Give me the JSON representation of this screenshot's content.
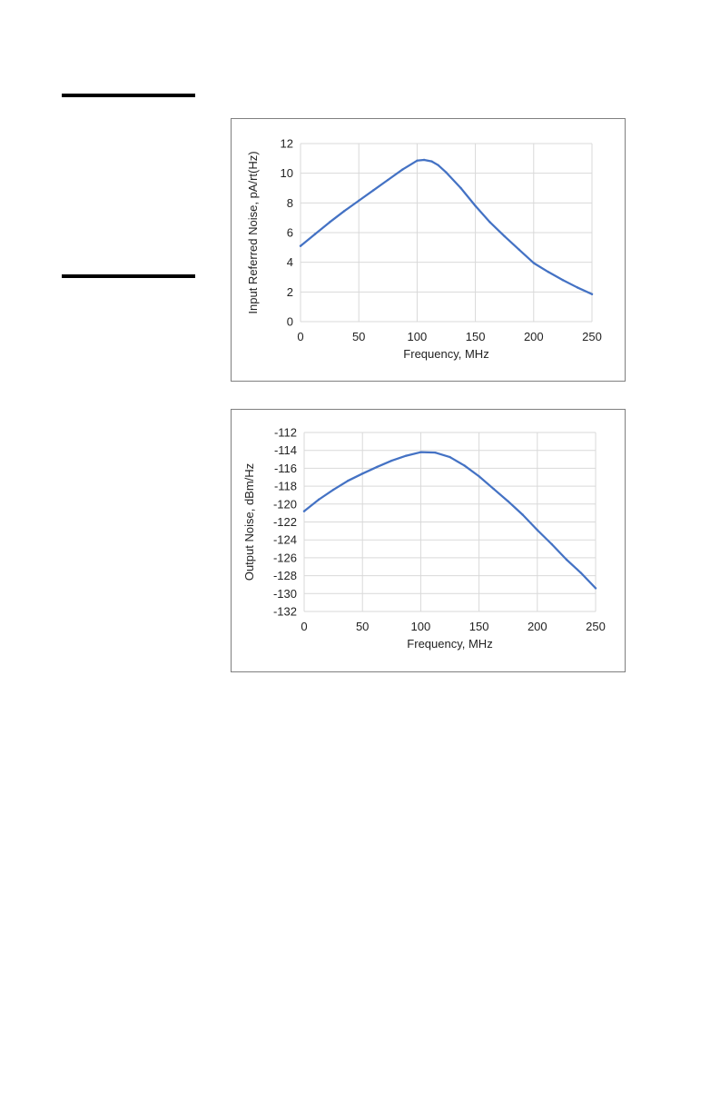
{
  "colors": {
    "series_line": "#4472C4",
    "gridline": "#d9d9d9",
    "frame_border": "#7f7f7f",
    "rule": "#000000"
  },
  "chart_data": [
    {
      "type": "line",
      "title": "",
      "xlabel": "Frequency, MHz",
      "ylabel": "Input Referred Noise, pA/rt(Hz)",
      "xlim": [
        0,
        250
      ],
      "ylim": [
        0,
        12
      ],
      "x_ticks": [
        "0",
        "50",
        "100",
        "150",
        "200",
        "250"
      ],
      "y_ticks": [
        "0",
        "2",
        "4",
        "6",
        "8",
        "10",
        "12"
      ],
      "grid": true,
      "legend": "none",
      "series": [
        {
          "x": [
            0,
            12.5,
            25,
            37.5,
            50,
            62.5,
            75,
            87.5,
            100,
            106,
            112.5,
            118,
            125,
            137.5,
            150,
            162.5,
            175,
            187.5,
            200,
            212.5,
            225,
            237.5,
            250
          ],
          "y": [
            5.1,
            5.9,
            6.7,
            7.45,
            8.15,
            8.85,
            9.55,
            10.25,
            10.85,
            10.9,
            10.8,
            10.55,
            10.05,
            9.0,
            7.8,
            6.7,
            5.75,
            4.85,
            3.95,
            3.35,
            2.8,
            2.3,
            1.85
          ]
        }
      ]
    },
    {
      "type": "line",
      "title": "",
      "xlabel": "Frequency, MHz",
      "ylabel": "Output Noise, dBm/Hz",
      "xlim": [
        0,
        250
      ],
      "ylim": [
        -132,
        -112
      ],
      "x_ticks": [
        "0",
        "50",
        "100",
        "150",
        "200",
        "250"
      ],
      "y_ticks": [
        "-112",
        "-114",
        "-116",
        "-118",
        "-120",
        "-122",
        "-124",
        "-126",
        "-128",
        "-130",
        "-132"
      ],
      "grid": true,
      "legend": "none",
      "series": [
        {
          "x": [
            0,
            12.5,
            25,
            37.5,
            50,
            62.5,
            75,
            87.5,
            100,
            112.5,
            125,
            137.5,
            150,
            162.5,
            175,
            187.5,
            200,
            212.5,
            225,
            237.5,
            250
          ],
          "y": [
            -120.8,
            -119.5,
            -118.4,
            -117.4,
            -116.6,
            -115.85,
            -115.15,
            -114.6,
            -114.2,
            -114.25,
            -114.75,
            -115.7,
            -116.9,
            -118.3,
            -119.7,
            -121.2,
            -122.9,
            -124.5,
            -126.2,
            -127.7,
            -129.4
          ]
        }
      ]
    }
  ]
}
